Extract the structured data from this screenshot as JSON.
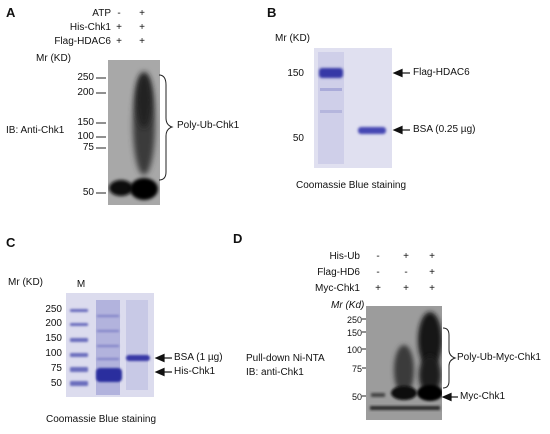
{
  "panelA": {
    "letter": "A",
    "rows": [
      {
        "label": "ATP",
        "lanes": [
          "-",
          "+"
        ]
      },
      {
        "label": "His-Chk1",
        "lanes": [
          "+",
          "+"
        ]
      },
      {
        "label": "Flag-HDAC6",
        "lanes": [
          "+",
          "+"
        ]
      }
    ],
    "mr_label": "Mr (KD)",
    "markers": [
      "250",
      "200",
      "150",
      "100",
      "75",
      "50"
    ],
    "ib_label": "IB: Anti-Chk1",
    "bracket_label": "Poly-Ub-Chk1"
  },
  "panelB": {
    "letter": "B",
    "mr_label": "Mr (KD)",
    "markers": [
      "150",
      "50"
    ],
    "band_labels": [
      "Flag-HDAC6",
      "BSA  (0.25 µg)"
    ],
    "caption": "Coomassie  Blue  staining"
  },
  "panelC": {
    "letter": "C",
    "mr_label": "Mr (KD)",
    "lane_label": "M",
    "markers": [
      "250",
      "200",
      "150",
      "100",
      "75",
      "50"
    ],
    "band_labels": [
      "BSA (1 µg)",
      "His-Chk1"
    ],
    "caption": "Coomassie  Blue staining"
  },
  "panelD": {
    "letter": "D",
    "rows": [
      {
        "label": "His-Ub",
        "lanes": [
          "-",
          "+",
          "+"
        ]
      },
      {
        "label": "Flag-HD6",
        "lanes": [
          "-",
          "-",
          "+"
        ]
      },
      {
        "label": "Myc-Chk1",
        "lanes": [
          "+",
          "+",
          "+"
        ]
      }
    ],
    "mr_label": "Mr (Kd)",
    "markers": [
      "250",
      "150",
      "100",
      "75",
      "50"
    ],
    "pulldown_label": "Pull-down  Ni-NTA",
    "ib_label": "IB:  anti-Chk1",
    "bracket_label": "Poly-Ub-Myc-Chk1",
    "arrow_label": "Myc-Chk1"
  },
  "colors": {
    "coomassie": "#3d3fa8",
    "blot_bg": "#9a9a9a",
    "gel_bg": "#dcdcee"
  }
}
